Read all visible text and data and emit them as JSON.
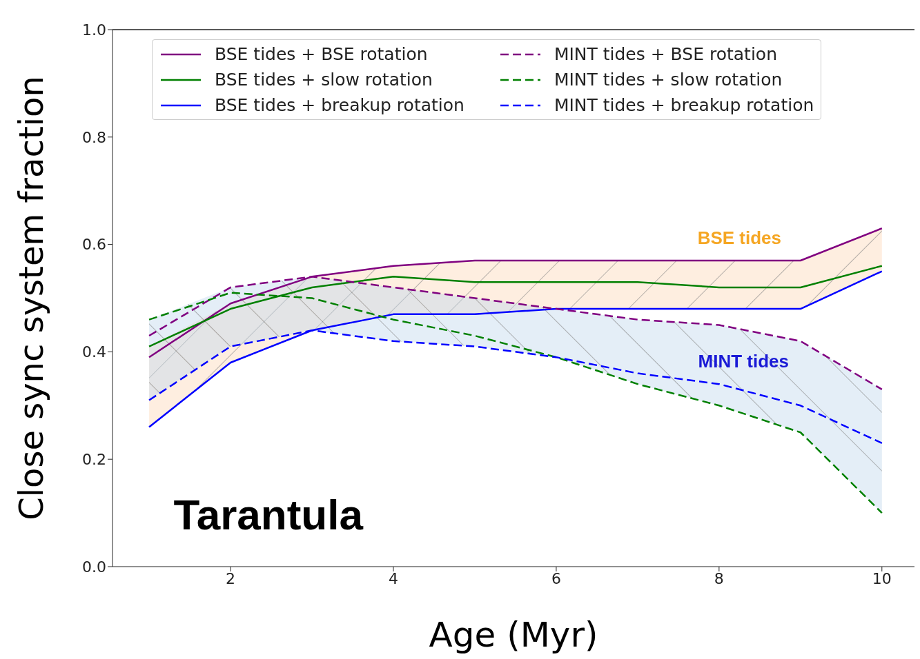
{
  "chart_data": {
    "type": "line",
    "xlabel": "Age (Myr)",
    "ylabel": "Close sync system fraction",
    "x": [
      1,
      2,
      3,
      4,
      5,
      6,
      7,
      8,
      9,
      10
    ],
    "xlim": [
      0.55,
      10.4
    ],
    "xticks": [
      2,
      4,
      6,
      8,
      10
    ],
    "ylim": [
      0,
      1
    ],
    "yticks": [
      {
        "value": 0,
        "label": "0.0"
      },
      {
        "value": 0.2,
        "label": "0.2"
      },
      {
        "value": 0.4,
        "label": "0.4"
      },
      {
        "value": 0.6,
        "label": "0.6"
      },
      {
        "value": 0.8,
        "label": "0.8"
      },
      {
        "value": 1,
        "label": "1.0"
      }
    ],
    "grid": false,
    "legend": "top",
    "marker": "none",
    "series": [
      {
        "name": "BSE tides + BSE rotation",
        "color": "#800080",
        "line_style": "solid",
        "values": [
          0.39,
          0.49,
          0.54,
          0.56,
          0.57,
          0.57,
          0.57,
          0.57,
          0.57,
          0.63
        ]
      },
      {
        "name": "BSE tides + slow rotation",
        "color": "#008000",
        "line_style": "solid",
        "values": [
          0.41,
          0.48,
          0.52,
          0.54,
          0.53,
          0.53,
          0.53,
          0.52,
          0.52,
          0.56
        ],
        "upper": [
          0.41,
          0.49,
          0.54,
          0.56,
          0.57,
          0.57,
          0.57,
          0.57,
          0.57,
          0.63
        ],
        "lower": [
          0.26,
          0.38,
          0.44,
          0.47,
          0.47,
          0.48,
          0.48,
          0.48,
          0.48,
          0.55
        ]
      },
      {
        "name": "BSE tides + breakup rotation",
        "color": "#0000ff",
        "line_style": "solid",
        "values": [
          0.26,
          0.38,
          0.44,
          0.47,
          0.47,
          0.48,
          0.48,
          0.48,
          0.48,
          0.55
        ]
      },
      {
        "name": "MINT tides + BSE rotation",
        "color": "#800080",
        "line_style": "dashed",
        "values": [
          0.43,
          0.52,
          0.54,
          0.52,
          0.5,
          0.48,
          0.46,
          0.45,
          0.42,
          0.33
        ]
      },
      {
        "name": "MINT tides + slow rotation",
        "color": "#008000",
        "line_style": "dashed",
        "values": [
          0.46,
          0.51,
          0.5,
          0.46,
          0.43,
          0.39,
          0.34,
          0.3,
          0.25,
          0.1
        ]
      },
      {
        "name": "MINT tides + breakup rotation",
        "color": "#0000ff",
        "line_style": "dashed",
        "values": [
          0.31,
          0.41,
          0.44,
          0.42,
          0.41,
          0.39,
          0.36,
          0.34,
          0.3,
          0.23
        ],
        "upper": [
          0.46,
          0.52,
          0.54,
          0.52,
          0.5,
          0.48,
          0.46,
          0.45,
          0.42,
          0.33
        ],
        "lower": [
          0.31,
          0.41,
          0.44,
          0.42,
          0.41,
          0.39,
          0.34,
          0.3,
          0.25,
          0.1
        ]
      }
    ],
    "annotations": [
      "BSE tides",
      "MINT tides",
      "Tarantula"
    ]
  }
}
